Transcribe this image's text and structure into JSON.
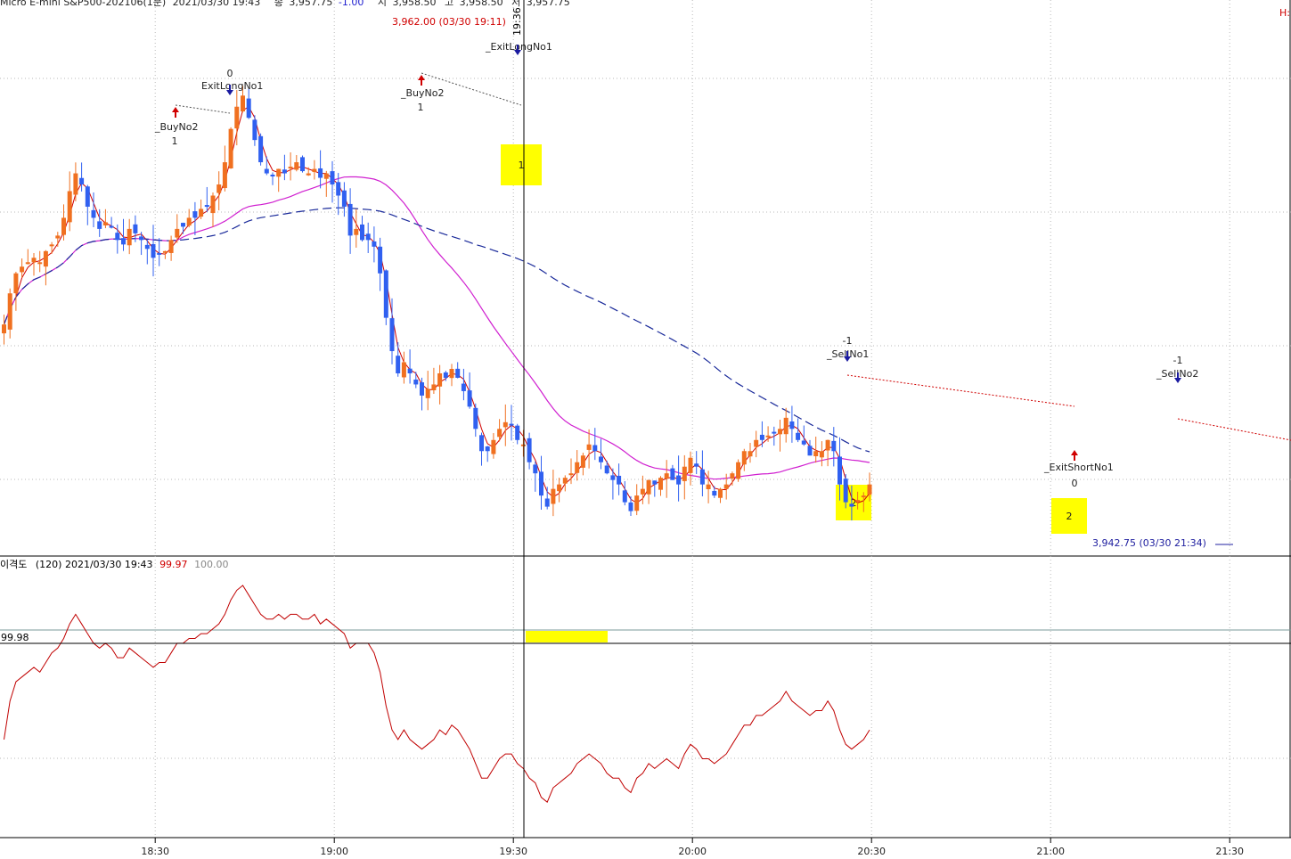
{
  "header": {
    "symbol": "Micro E-mini S&P500-202106(1분)",
    "datetime": "2021/03/30 19:43",
    "close_label": "종",
    "close": "3,957.75",
    "change": "-1.00",
    "open_label": "시",
    "open": "3,958.50",
    "high_label": "고",
    "high": "3,958.50",
    "low_label": "저",
    "low": "3,957.75",
    "right_label": "H:"
  },
  "indicator_header": {
    "name": "이격도",
    "params": "(120) 2021/03/30 19:43",
    "value": "99.97",
    "baseline": "100.00",
    "value_color": "#d00000",
    "baseline_color": "#888888"
  },
  "annotations": {
    "high_label": "3,962.00 (03/30 19:11)",
    "low_label": "3,942.75 (03/30 21:34)",
    "cursor_time": "19:36",
    "indicator_cursor_value": "99.98",
    "signals": [
      {
        "name": "_BuyNo2",
        "qty": "1",
        "kind": "buy",
        "time": "18:38"
      },
      {
        "name": "ExitLongNo1",
        "qty": "0",
        "kind": "exit-long",
        "time": "18:47"
      },
      {
        "name": "_BuyNo2",
        "qty": "1",
        "kind": "buy",
        "time": "19:19"
      },
      {
        "name": "_ExitLongNo1",
        "qty": "",
        "kind": "exit-long",
        "time": "19:35"
      },
      {
        "name": "_SellNo1",
        "qty": "-1",
        "kind": "sell",
        "time": "20:30"
      },
      {
        "name": "_ExitShortNo1",
        "qty": "0",
        "kind": "exit-short",
        "time": "21:08"
      },
      {
        "name": "_SellNo2",
        "qty": "-1",
        "kind": "sell",
        "time": "21:25"
      }
    ],
    "markers": [
      {
        "label": "1",
        "time": "19:36"
      },
      {
        "label": "2",
        "time": "20:31"
      },
      {
        "label": "2",
        "time": "21:07"
      }
    ],
    "marker_color": "#ffff00"
  },
  "chart_data": {
    "type": "candlestick",
    "x_ticks": [
      "18:30",
      "19:00",
      "19:30",
      "20:00",
      "20:30",
      "21:00",
      "21:30"
    ],
    "colors": {
      "up": "#f07020",
      "down": "#3060f0",
      "short_ma": "#d00000",
      "mid_ma": "#d020d0",
      "long_ma": "#1a2a9a",
      "indicator": "#c00000"
    },
    "series_price": [
      3951.2,
      3952.6,
      3953.5,
      3953.8,
      3954.0,
      3954.2,
      3954.0,
      3954.5,
      3954.8,
      3955.2,
      3956.0,
      3957.2,
      3958.0,
      3957.5,
      3956.5,
      3956.0,
      3955.5,
      3955.8,
      3955.6,
      3955.0,
      3954.8,
      3955.5,
      3955.3,
      3955.0,
      3954.6,
      3954.2,
      3954.4,
      3954.5,
      3955.0,
      3955.5,
      3955.6,
      3956.0,
      3956.0,
      3956.4,
      3956.5,
      3957.0,
      3957.5,
      3958.5,
      3960.0,
      3961.0,
      3961.5,
      3960.5,
      3959.5,
      3958.5,
      3958.0,
      3957.9,
      3958.2,
      3958.0,
      3958.3,
      3958.5,
      3958.1,
      3958.0,
      3958.2,
      3957.8,
      3958.0,
      3957.5,
      3957.0,
      3956.5,
      3955.2,
      3955.5,
      3955.0,
      3955.0,
      3954.7,
      3953.5,
      3951.5,
      3950.0,
      3949.0,
      3949.5,
      3949.0,
      3948.5,
      3948.0,
      3948.3,
      3948.5,
      3949.0,
      3948.8,
      3949.2,
      3948.8,
      3948.2,
      3947.5,
      3946.5,
      3945.5,
      3945.5,
      3946.0,
      3946.5,
      3946.8,
      3946.7,
      3946.0,
      3945.8,
      3945.0,
      3944.5,
      3943.5,
      3943.0,
      3943.8,
      3944.0,
      3944.3,
      3944.5,
      3945.0,
      3945.3,
      3945.8,
      3945.5,
      3945.0,
      3944.5,
      3944.2,
      3944.0,
      3943.2,
      3942.8,
      3943.5,
      3943.8,
      3944.2,
      3944.0,
      3944.3,
      3944.5,
      3944.2,
      3944.0,
      3944.8,
      3945.2,
      3944.8,
      3944.0,
      3944.0,
      3943.5,
      3943.8,
      3944.0,
      3944.5,
      3945.0,
      3945.5,
      3945.5,
      3946.0,
      3946.0,
      3946.2,
      3946.3,
      3946.5,
      3947.0,
      3946.5,
      3946.0,
      3945.8,
      3945.3,
      3945.5,
      3945.5,
      3946.0,
      3945.5,
      3944.0,
      3943.2,
      3943.0,
      3943.3,
      3943.5,
      3944.0
    ],
    "series_indicator": [
      99.975,
      99.983,
      99.987,
      99.988,
      99.989,
      99.99,
      99.989,
      99.991,
      99.993,
      99.994,
      99.996,
      99.999,
      100.001,
      99.999,
      99.997,
      99.995,
      99.994,
      99.995,
      99.994,
      99.992,
      99.992,
      99.994,
      99.993,
      99.992,
      99.991,
      99.99,
      99.991,
      99.991,
      99.993,
      99.995,
      99.995,
      99.996,
      99.996,
      99.997,
      99.997,
      99.998,
      99.999,
      100.001,
      100.004,
      100.006,
      100.007,
      100.005,
      100.003,
      100.001,
      100.0,
      100.0,
      100.001,
      100.0,
      100.001,
      100.001,
      100.0,
      100.0,
      100.001,
      99.999,
      100.0,
      99.999,
      99.998,
      99.997,
      99.994,
      99.995,
      99.995,
      99.995,
      99.993,
      99.989,
      99.982,
      99.977,
      99.975,
      99.977,
      99.975,
      99.974,
      99.973,
      99.974,
      99.975,
      99.977,
      99.976,
      99.978,
      99.977,
      99.975,
      99.973,
      99.97,
      99.967,
      99.967,
      99.969,
      99.971,
      99.972,
      99.972,
      99.97,
      99.969,
      99.967,
      99.966,
      99.963,
      99.962,
      99.965,
      99.966,
      99.967,
      99.968,
      99.97,
      99.971,
      99.972,
      99.971,
      99.97,
      99.968,
      99.967,
      99.967,
      99.965,
      99.964,
      99.967,
      99.968,
      99.97,
      99.969,
      99.97,
      99.971,
      99.97,
      99.969,
      99.972,
      99.974,
      99.973,
      99.971,
      99.971,
      99.97,
      99.971,
      99.972,
      99.974,
      99.976,
      99.978,
      99.978,
      99.98,
      99.98,
      99.981,
      99.982,
      99.983,
      99.985,
      99.983,
      99.982,
      99.981,
      99.98,
      99.981,
      99.981,
      99.983,
      99.981,
      99.977,
      99.974,
      99.973,
      99.974,
      99.975,
      99.977
    ],
    "ylim_price": [
      3941.5,
      3965.0
    ],
    "ylim_indicator": [
      99.955,
      100.012
    ]
  }
}
